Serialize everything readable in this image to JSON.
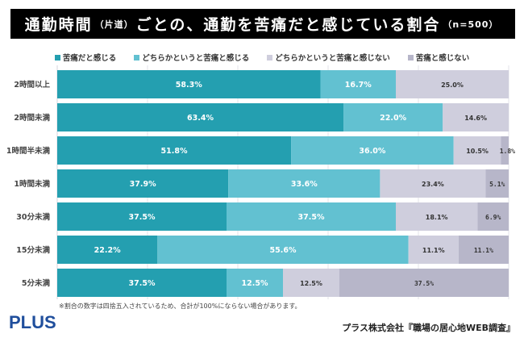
{
  "title": {
    "main1": "通勤時間",
    "paren1": "（片道）",
    "main2": "ごとの、通勤を苦痛だと感じている割合",
    "paren2": "（n=500）"
  },
  "colors": {
    "s1": "#249fb0",
    "s2": "#62c1d1",
    "s3": "#cfcedd",
    "s4": "#b7b6c9",
    "grid": "#e3e3e8"
  },
  "chart_data": {
    "type": "bar",
    "orientation": "horizontal",
    "stacked": true,
    "title": "通勤時間（片道）ごとの、通勤を苦痛だと感じている割合（n=500）",
    "xlim": [
      0,
      100
    ],
    "grid": true,
    "legend_position": "top",
    "categories": [
      "2時間以上",
      "2時間未満",
      "1時間半未満",
      "1時間未満",
      "30分未満",
      "15分未満",
      "5分未満"
    ],
    "series": [
      {
        "name": "苦痛だと感じる",
        "values": [
          58.3,
          63.4,
          51.8,
          37.9,
          37.5,
          22.2,
          37.5
        ],
        "labels": [
          "58.3%",
          "63.4%",
          "51.8%",
          "37.9%",
          "37.5%",
          "22.2%",
          "37.5%"
        ]
      },
      {
        "name": "どちらかというと苦痛と感じる",
        "values": [
          16.7,
          22.0,
          36.0,
          33.6,
          37.5,
          55.6,
          12.5
        ],
        "labels": [
          "16.7%",
          "22.0%",
          "36.0%",
          "33.6%",
          "37.5%",
          "55.6%",
          "12.5%"
        ]
      },
      {
        "name": "どちらかというと苦痛と感じない",
        "values": [
          25.0,
          14.6,
          10.5,
          23.4,
          18.1,
          11.1,
          12.5
        ],
        "labels": [
          "25.0%",
          "14.6%",
          "10.5%",
          "23.4%",
          "18.1%",
          "11.1%",
          "12.5%"
        ]
      },
      {
        "name": "苦痛と感じない",
        "values": [
          0,
          0,
          1.8,
          5.1,
          6.9,
          11.1,
          37.5
        ],
        "labels": [
          "",
          "",
          "1.8%",
          "5.1%",
          "6.9%",
          "11.1%",
          "37.5%"
        ]
      }
    ]
  },
  "note": "※割合の数字は四捨五入されているため、合計が100%にならない場合があります。",
  "logo": "PLUS",
  "source": "プラス株式会社『職場の居心地WEB調査』"
}
